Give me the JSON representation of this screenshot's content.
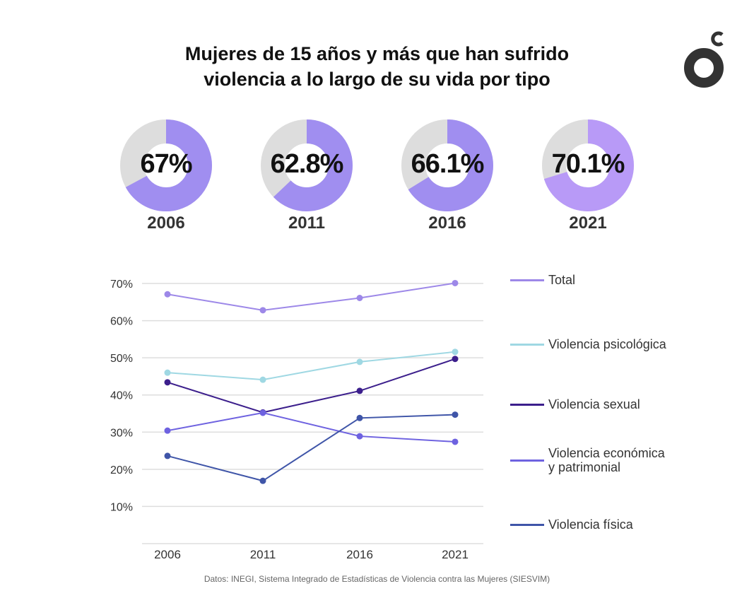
{
  "title": {
    "line1": "Mujeres de 15 años y más que han sufrido",
    "line2": "violencia a lo largo de su vida por tipo"
  },
  "logo": {
    "icon": "o-c-brand-logo",
    "color": "#333333"
  },
  "donuts": [
    {
      "year": "2006",
      "label": "67%",
      "value": 67.0,
      "color": "#a08ef0"
    },
    {
      "year": "2011",
      "label": "62.8%",
      "value": 62.8,
      "color": "#a08ef0"
    },
    {
      "year": "2016",
      "label": "66.1%",
      "value": 66.1,
      "color": "#a08ef0"
    },
    {
      "year": "2021",
      "label": "70.1%",
      "value": 70.1,
      "color": "#b89af7"
    }
  ],
  "donut_rest_color": "#dddddd",
  "chart_data": {
    "type": "line",
    "title": "Mujeres de 15 años y más que han sufrido violencia a lo largo de su vida por tipo",
    "xlabel": "",
    "ylabel": "",
    "x": [
      "2006",
      "2011",
      "2016",
      "2021"
    ],
    "yticks": [
      10,
      20,
      30,
      40,
      50,
      60,
      70
    ],
    "ytick_labels": [
      "10%",
      "20%",
      "30%",
      "40%",
      "50%",
      "60%",
      "70%"
    ],
    "ylim": [
      0,
      70
    ],
    "grid": true,
    "legend_position": "right",
    "series": [
      {
        "name": "Total",
        "color": "#9d88e8",
        "values": [
          67.1,
          62.8,
          66.1,
          70.1
        ]
      },
      {
        "name": "Violencia psicológica",
        "color": "#9fd8e3",
        "values": [
          46.0,
          44.1,
          48.9,
          51.6
        ]
      },
      {
        "name": "Violencia sexual",
        "color": "#3c1f8c",
        "values": [
          43.4,
          35.3,
          41.1,
          49.7
        ]
      },
      {
        "name": "Violencia económica y patrimonial",
        "color": "#6e62e0",
        "values": [
          30.4,
          35.2,
          28.9,
          27.4
        ]
      },
      {
        "name": "Violencia física",
        "color": "#3f55a8",
        "values": [
          23.6,
          16.9,
          33.8,
          34.7
        ]
      }
    ],
    "legend_labels": [
      [
        "Total"
      ],
      [
        "Violencia psicológica"
      ],
      [
        "Violencia sexual"
      ],
      [
        "Violencia económica",
        "y patrimonial"
      ],
      [
        "Violencia física"
      ]
    ]
  },
  "footer": "Datos: INEGI, Sistema Integrado de Estadísticas de Violencia contra las Mujeres (SIESVIM)"
}
